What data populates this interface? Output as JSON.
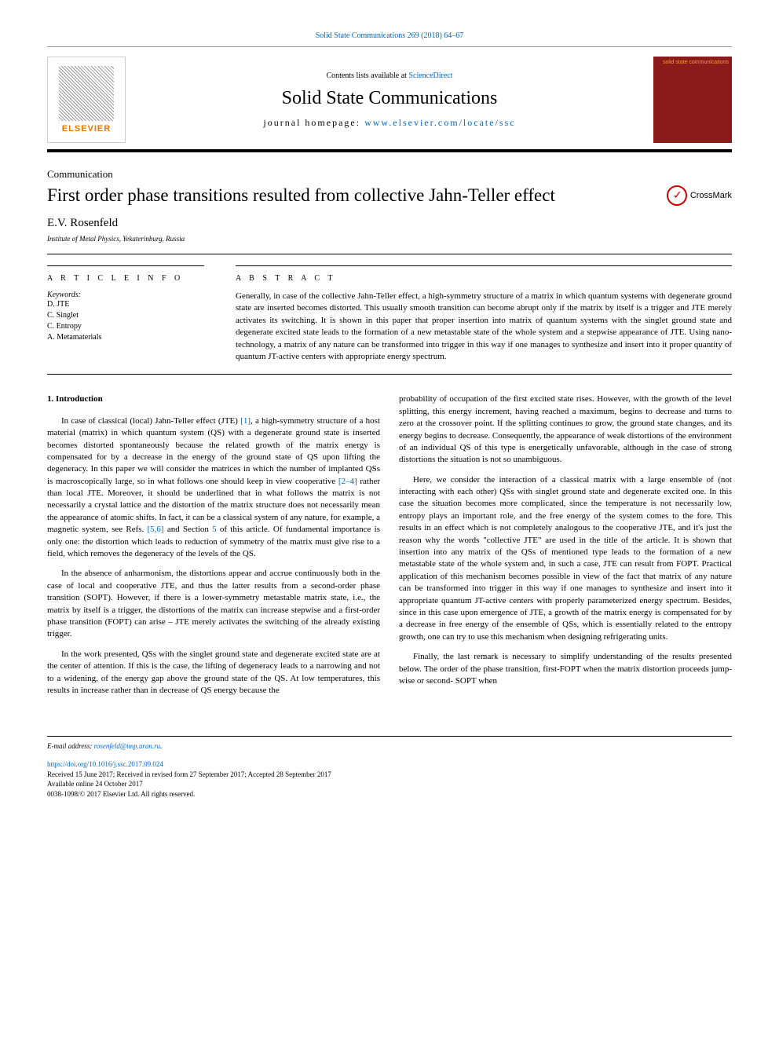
{
  "header": {
    "citation": "Solid State Communications 269 (2018) 64–67",
    "contents_prefix": "Contents lists available at ",
    "contents_link": "ScienceDirect",
    "journal": "Solid State Communications",
    "homepage_prefix": "journal homepage: ",
    "homepage_url": "www.elsevier.com/locate/ssc",
    "publisher_logo": "ELSEVIER",
    "cover_text": "solid state communications"
  },
  "article": {
    "type": "Communication",
    "title": "First order phase transitions resulted from collective Jahn-Teller effect",
    "crossmark": "CrossMark",
    "author": "E.V. Rosenfeld",
    "affiliation": "Institute of Metal Physics, Yekaterinburg, Russia"
  },
  "info": {
    "heading": "A R T I C L E  I N F O",
    "kw_label": "Keywords:",
    "keywords": [
      "D. JTE",
      "C. Singlet",
      "C. Entropy",
      "A. Metamaterials"
    ]
  },
  "abstract": {
    "heading": "A B S T R A C T",
    "text": "Generally, in case of the collective Jahn-Teller effect, a high-symmetry structure of a matrix in which quantum systems with degenerate ground state are inserted becomes distorted. This usually smooth transition can become abrupt only if the matrix by itself is a trigger and JTE merely activates its switching. It is shown in this paper that proper insertion into matrix of quantum systems with the singlet ground state and degenerate excited state leads to the formation of a new metastable state of the whole system and a stepwise appearance of JTE. Using nano-technology, a matrix of any nature can be transformed into trigger in this way if one manages to synthesize and insert into it proper quantity of quantum JT-active centers with appropriate energy spectrum."
  },
  "body": {
    "section_heading": "1.  Introduction",
    "left": [
      {
        "pre": "In case of classical (local) Jahn-Teller effect (JTE) ",
        "link": "[1]",
        "post": ", a high-symmetry structure of a host material (matrix) in which quantum system (QS) with a degenerate ground state is inserted becomes distorted spontaneously because the related growth of the matrix energy is compensated for by a decrease in the energy of the ground state of QS upon lifting the degeneracy. In this paper we will consider the matrices in which the number of implanted QSs is macroscopically large, so in what follows one should keep in view cooperative ",
        "link2": "[2–4]",
        "post2": " rather than local JTE. Moreover, it should be underlined that in what follows the matrix is not necessarily a crystal lattice and the distortion of the matrix structure does not necessarily mean the appearance of atomic shifts. In fact, it can be a classical system of any nature, for example, a magnetic system, see Refs. ",
        "link3": "[5,6]",
        "post3": " and Section ",
        "link4": "5",
        "post4": " of this article. Of fundamental importance is only one: the distortion which leads to reduction of symmetry of the matrix must give rise to a field, which removes the degeneracy of the levels of the QS."
      },
      {
        "text": "In the absence of anharmonism, the distortions appear and accrue continuously both in the case of local and cooperative JTE, and thus the latter results from a second-order phase transition (SOPT). However, if there is a lower-symmetry metastable matrix state, i.e., the matrix by itself is a trigger, the distortions of the matrix can increase stepwise and a first-order phase transition (FOPT) can arise – JTE merely activates the switching of the already existing trigger."
      },
      {
        "text": "In the work presented, QSs with the singlet ground state and degenerate excited state are at the center of attention. If this is the case, the lifting of degeneracy leads to a narrowing and not to a widening, of the energy gap above the ground state of the QS. At low temperatures, this results in increase rather than in decrease of QS energy because the"
      }
    ],
    "right": [
      {
        "text": "probability of occupation of the first excited state rises. However, with the growth of the level splitting, this energy increment, having reached a maximum, begins to decrease and turns to zero at the crossover point. If the splitting continues to grow, the ground state changes, and its energy begins to decrease. Consequently, the appearance of weak distortions of the environment of an individual QS of this type is energetically unfavorable, although in the case of strong distortions the situation is not so unambiguous."
      },
      {
        "text": "Here, we consider the interaction of a classical matrix with a large ensemble of (not interacting with each other) QSs with singlet ground state and degenerate excited one. In this case the situation becomes more complicated, since the temperature is not necessarily low, entropy plays an important role, and the free energy of the system comes to the fore. This results in an effect which is not completely analogous to the cooperative JTE, and it's just the reason why the words \"collective JTE\" are used in the title of the article. It is shown that insertion into any matrix of the QSs of mentioned type leads to the formation of a new metastable state of the whole system and, in such a case, JTE can result from FOPT. Practical application of this mechanism becomes possible in view of the fact that matrix of any nature can be transformed into trigger in this way if one manages to synthesize and insert into it appropriate quantum JT-active centers with properly parameterized energy spectrum. Besides, since in this case upon emergence of JTE, a growth of the matrix energy is compensated for by a decrease in free energy of the ensemble of QSs, which is essentially related to the entropy growth, one can try to use this mechanism when designing refrigerating units."
      },
      {
        "text": "Finally, the last remark is necessary to simplify understanding of the results presented below. The order of the phase transition, first-FOPT when the matrix distortion proceeds jump-wise or second- SOPT when"
      }
    ]
  },
  "footer": {
    "email_label": "E-mail address: ",
    "email": "rosenfeld@imp.uran.ru",
    "doi": "https://doi.org/10.1016/j.ssc.2017.09.024",
    "history": "Received 15 June 2017; Received in revised form 27 September 2017; Accepted 28 September 2017",
    "online": "Available online 24 October 2017",
    "issn": "0038-1098/© 2017 Elsevier Ltd. All rights reserved."
  },
  "colors": {
    "link": "#0066cc",
    "elsevier": "#e67700",
    "cover_bg": "#8b1a1a",
    "cover_fg": "#ff9933",
    "crossmark": "#c00000"
  },
  "fonts": {
    "body_size": 11,
    "title_size": 23,
    "journal_size": 24,
    "small_size": 10,
    "tiny_size": 9
  }
}
